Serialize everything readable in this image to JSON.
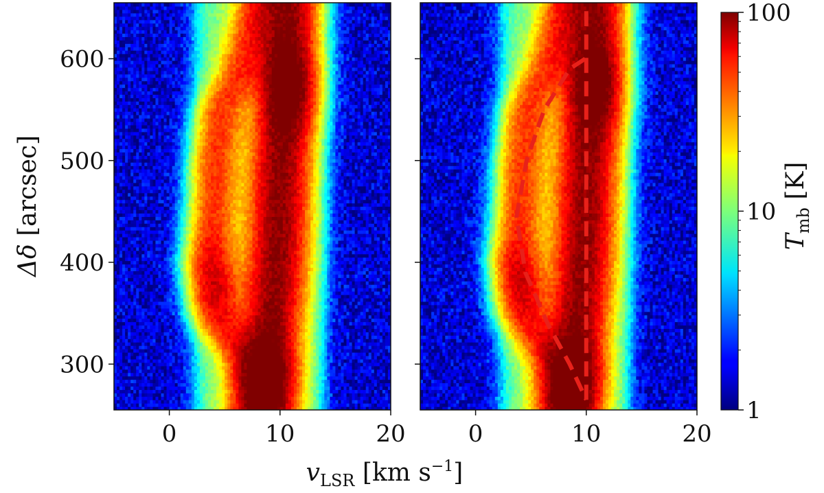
{
  "chart_data": [
    {
      "type": "heatmap",
      "panel": "left",
      "xlabel": "v_LSR [km s^-1]",
      "ylabel": "Δδ [arcsec]",
      "xlim": [
        -5,
        20
      ],
      "ylim": [
        255,
        655
      ],
      "xticks": [
        0,
        10,
        20
      ],
      "yticks": [
        300,
        400,
        500,
        600
      ],
      "x_tick_labels": [
        "0",
        "10",
        "20"
      ],
      "y_tick_labels": [
        "300",
        "400",
        "500",
        "600"
      ],
      "ridges": [
        {
          "name": "",
          "points": [
            [
              8.2,
              255
            ],
            [
              8.6,
              290
            ],
            [
              9.0,
              330
            ],
            [
              9.4,
              360
            ],
            [
              9.7,
              400
            ],
            [
              9.9,
              440
            ],
            [
              10.0,
              480
            ],
            [
              10.2,
              520
            ],
            [
              10.4,
              560
            ],
            [
              10.5,
              600
            ],
            [
              10.7,
              655
            ]
          ],
          "peak_K": 85,
          "width_kms": 1.6
        },
        {
          "name": "",
          "points": [
            [
              8.5,
              255
            ],
            [
              7.0,
              300
            ],
            [
              4.5,
              350
            ],
            [
              3.6,
              400
            ],
            [
              4.0,
              450
            ],
            [
              4.2,
              500
            ],
            [
              4.8,
              550
            ],
            [
              6.5,
              590
            ],
            [
              7.5,
              630
            ],
            [
              8.0,
              655
            ]
          ],
          "peak_K": 35,
          "width_kms": 1.3
        }
      ],
      "hot_spots": [
        {
          "v": 9.3,
          "y": 285,
          "T": 95
        },
        {
          "v": 10.8,
          "y": 575,
          "T": 90
        },
        {
          "v": 4.2,
          "y": 380,
          "T": 45
        }
      ],
      "noise_floor_K": 1.5
    },
    {
      "type": "heatmap",
      "panel": "right",
      "xlabel": "",
      "ylabel": "",
      "xlim": [
        -5,
        20
      ],
      "ylim": [
        255,
        655
      ],
      "xticks": [
        0,
        10,
        20
      ],
      "yticks": [
        300,
        400,
        500,
        600
      ],
      "x_tick_labels": [
        "0",
        "10",
        "20"
      ],
      "y_tick_labels": [],
      "ridges": [
        {
          "name": "",
          "points": [
            [
              8.2,
              255
            ],
            [
              8.6,
              290
            ],
            [
              9.0,
              330
            ],
            [
              9.4,
              360
            ],
            [
              9.7,
              400
            ],
            [
              9.9,
              440
            ],
            [
              10.0,
              480
            ],
            [
              10.2,
              520
            ],
            [
              10.4,
              560
            ],
            [
              10.5,
              600
            ],
            [
              10.7,
              655
            ]
          ],
          "peak_K": 85,
          "width_kms": 1.6
        },
        {
          "name": "",
          "points": [
            [
              8.5,
              255
            ],
            [
              7.0,
              300
            ],
            [
              4.5,
              350
            ],
            [
              3.6,
              400
            ],
            [
              4.0,
              450
            ],
            [
              4.2,
              500
            ],
            [
              4.8,
              550
            ],
            [
              6.5,
              590
            ],
            [
              7.5,
              630
            ],
            [
              8.0,
              655
            ]
          ],
          "peak_K": 35,
          "width_kms": 1.3
        }
      ],
      "hot_spots": [
        {
          "v": 9.3,
          "y": 285,
          "T": 95
        },
        {
          "v": 10.8,
          "y": 575,
          "T": 90
        },
        {
          "v": 4.2,
          "y": 380,
          "T": 45
        }
      ],
      "noise_floor_K": 1.5,
      "overlays": [
        {
          "name": "",
          "style": "dashed",
          "color": "#e8211a",
          "points": [
            [
              9.9,
              600
            ],
            [
              8.5,
              590
            ],
            [
              6.2,
              550
            ],
            [
              4.6,
              500
            ],
            [
              3.7,
              445
            ],
            [
              4.5,
              390
            ],
            [
              6.5,
              340
            ],
            [
              8.5,
              300
            ],
            [
              10.0,
              265
            ]
          ]
        },
        {
          "name": "",
          "style": "dashed",
          "color": "#e8211a",
          "points": [
            [
              10.0,
              265
            ],
            [
              10.0,
              655
            ]
          ]
        }
      ]
    }
  ],
  "colorbar": {
    "label": "T_mb [K]",
    "scale": "log",
    "range": [
      1,
      100
    ],
    "ticks": [
      1,
      10,
      100
    ],
    "tick_labels": [
      "1",
      "10",
      "100"
    ],
    "colormap": "jet"
  },
  "axis_labels": {
    "x": "v_LSR [km s^-1]",
    "y": "Δδ [arcsec]",
    "colorbar": "T_mb [K]"
  }
}
